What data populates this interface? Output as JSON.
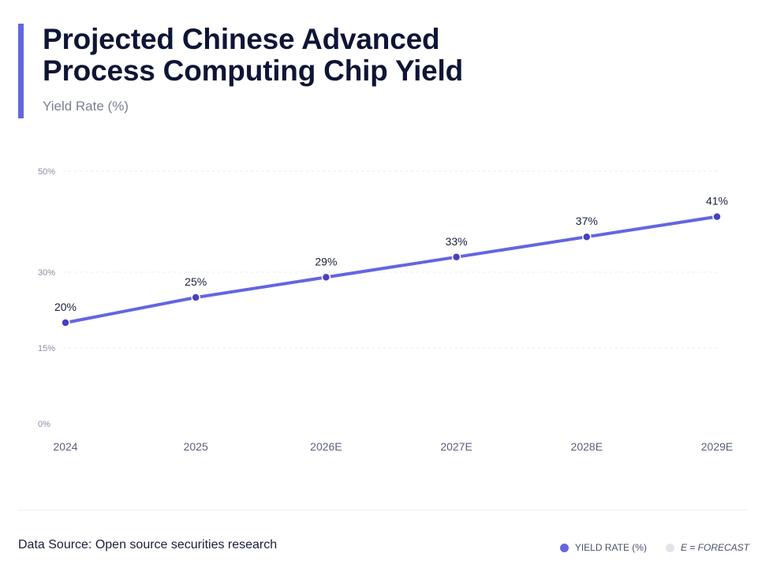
{
  "header": {
    "title": "Projected Chinese Advanced Process Computing Chip Yield",
    "subtitle": "Yield Rate (%)"
  },
  "footer": {
    "source": "Data Source: Open source securities research",
    "legend": [
      {
        "label": "YIELD RATE (%)",
        "color": "#6366e0"
      },
      {
        "label": "E = FORECAST",
        "color": "#e2e4ea"
      }
    ]
  },
  "chart_data": {
    "type": "line",
    "categories": [
      "2024",
      "2025",
      "2026E",
      "2027E",
      "2028E",
      "2029E"
    ],
    "series": [
      {
        "name": "YIELD RATE (%)",
        "values": [
          20,
          25,
          29,
          33,
          37,
          41
        ],
        "color": "#6366e0"
      }
    ],
    "data_labels": [
      "20%",
      "25%",
      "29%",
      "33%",
      "37%",
      "41%"
    ],
    "y_ticks": [
      0,
      15,
      30,
      50
    ],
    "y_tick_labels": [
      "0%",
      "15%",
      "30%",
      "50%"
    ],
    "ylim": [
      0,
      50
    ],
    "grid": true,
    "legend_position": "bottom-right"
  }
}
